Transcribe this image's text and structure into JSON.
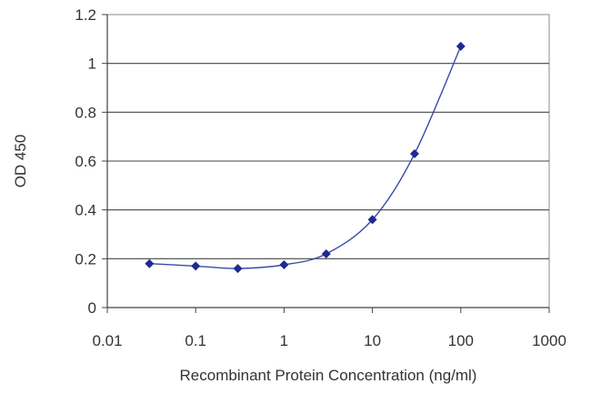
{
  "chart_data": {
    "type": "scatter",
    "title": "",
    "xlabel": "Recombinant Protein Concentration (ng/ml)",
    "ylabel": "OD 450",
    "x_scale": "log",
    "xlim": [
      0.01,
      1000
    ],
    "ylim": [
      0,
      1.2
    ],
    "x_ticks": [
      0.01,
      0.1,
      1,
      10,
      100,
      1000
    ],
    "x_tick_labels": [
      "0.01",
      "0.1",
      "1",
      "10",
      "100",
      "1000"
    ],
    "y_ticks": [
      0,
      0.2,
      0.4,
      0.6,
      0.8,
      1,
      1.2
    ],
    "y_tick_labels": [
      "0",
      "0.2",
      "0.4",
      "0.6",
      "0.8",
      "1",
      "1.2"
    ],
    "grid": "horizontal",
    "legend": "none",
    "series": [
      {
        "x": [
          0.03,
          0.1,
          0.3,
          1,
          3,
          10,
          30,
          100
        ],
        "y": [
          0.18,
          0.17,
          0.16,
          0.175,
          0.22,
          0.36,
          0.63,
          1.07
        ],
        "color": "#1f2a8f",
        "marker": "diamond",
        "fit_curve": true
      }
    ]
  }
}
